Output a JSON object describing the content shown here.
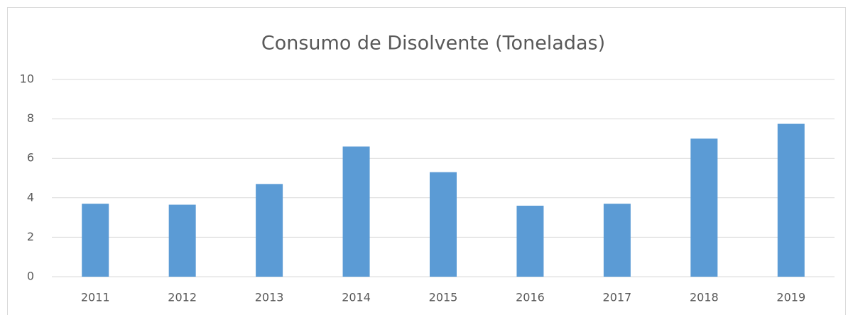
{
  "chart_data": {
    "type": "bar",
    "title": "Consumo de Disolvente (Toneladas)",
    "categories": [
      "2011",
      "2012",
      "2013",
      "2014",
      "2015",
      "2016",
      "2017",
      "2018",
      "2019"
    ],
    "values": [
      3.7,
      3.65,
      4.7,
      6.6,
      5.3,
      3.6,
      3.7,
      7.0,
      7.75
    ],
    "color": "#5b9bd5",
    "ylim": [
      0,
      10
    ],
    "yticks": [
      0,
      2,
      4,
      6,
      8,
      10
    ],
    "grid": true
  }
}
